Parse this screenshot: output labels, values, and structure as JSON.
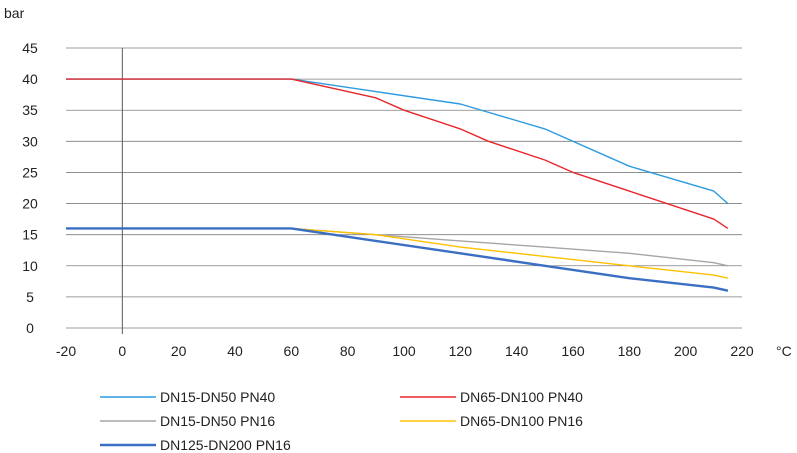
{
  "chart_data": {
    "type": "line",
    "ylabel": "bar",
    "xlabel": "°C",
    "xlim": [
      -20,
      220
    ],
    "ylim": [
      0,
      45
    ],
    "x_ticks": [
      -20,
      0,
      20,
      40,
      60,
      80,
      100,
      120,
      140,
      160,
      180,
      200,
      220
    ],
    "y_ticks": [
      0,
      5,
      10,
      15,
      20,
      25,
      30,
      35,
      40,
      45
    ],
    "grid": "horizontal",
    "legend_position": "bottom",
    "series": [
      {
        "name": "DN15-DN50 PN40",
        "color": "#2e9be0",
        "points": [
          [
            -20,
            40
          ],
          [
            60,
            40
          ],
          [
            90,
            38
          ],
          [
            120,
            36
          ],
          [
            150,
            32
          ],
          [
            180,
            26
          ],
          [
            210,
            22
          ],
          [
            215,
            20
          ]
        ]
      },
      {
        "name": "DN65-DN100 PN40",
        "color": "#e8262b",
        "points": [
          [
            -20,
            40
          ],
          [
            60,
            40
          ],
          [
            90,
            37
          ],
          [
            100,
            35
          ],
          [
            120,
            32
          ],
          [
            130,
            30
          ],
          [
            150,
            27
          ],
          [
            160,
            25
          ],
          [
            180,
            22
          ],
          [
            210,
            17.5
          ],
          [
            215,
            16
          ]
        ]
      },
      {
        "name": "DN15-DN50 PN16",
        "color": "#a6a6a6",
        "points": [
          [
            -20,
            16
          ],
          [
            60,
            16
          ],
          [
            90,
            15
          ],
          [
            120,
            14
          ],
          [
            150,
            13
          ],
          [
            180,
            12
          ],
          [
            210,
            10.5
          ],
          [
            215,
            10
          ]
        ]
      },
      {
        "name": "DN65-DN100 PN16",
        "color": "#ffc000",
        "points": [
          [
            -20,
            16
          ],
          [
            60,
            16
          ],
          [
            90,
            15
          ],
          [
            120,
            13
          ],
          [
            150,
            11.5
          ],
          [
            180,
            10
          ],
          [
            210,
            8.5
          ],
          [
            215,
            8
          ]
        ]
      },
      {
        "name": "DN125-DN200 PN16",
        "color": "#3a6fc4",
        "points": [
          [
            -20,
            16
          ],
          [
            60,
            16
          ],
          [
            90,
            14
          ],
          [
            120,
            12
          ],
          [
            150,
            10
          ],
          [
            180,
            8
          ],
          [
            210,
            6.5
          ],
          [
            215,
            6
          ]
        ]
      }
    ]
  }
}
